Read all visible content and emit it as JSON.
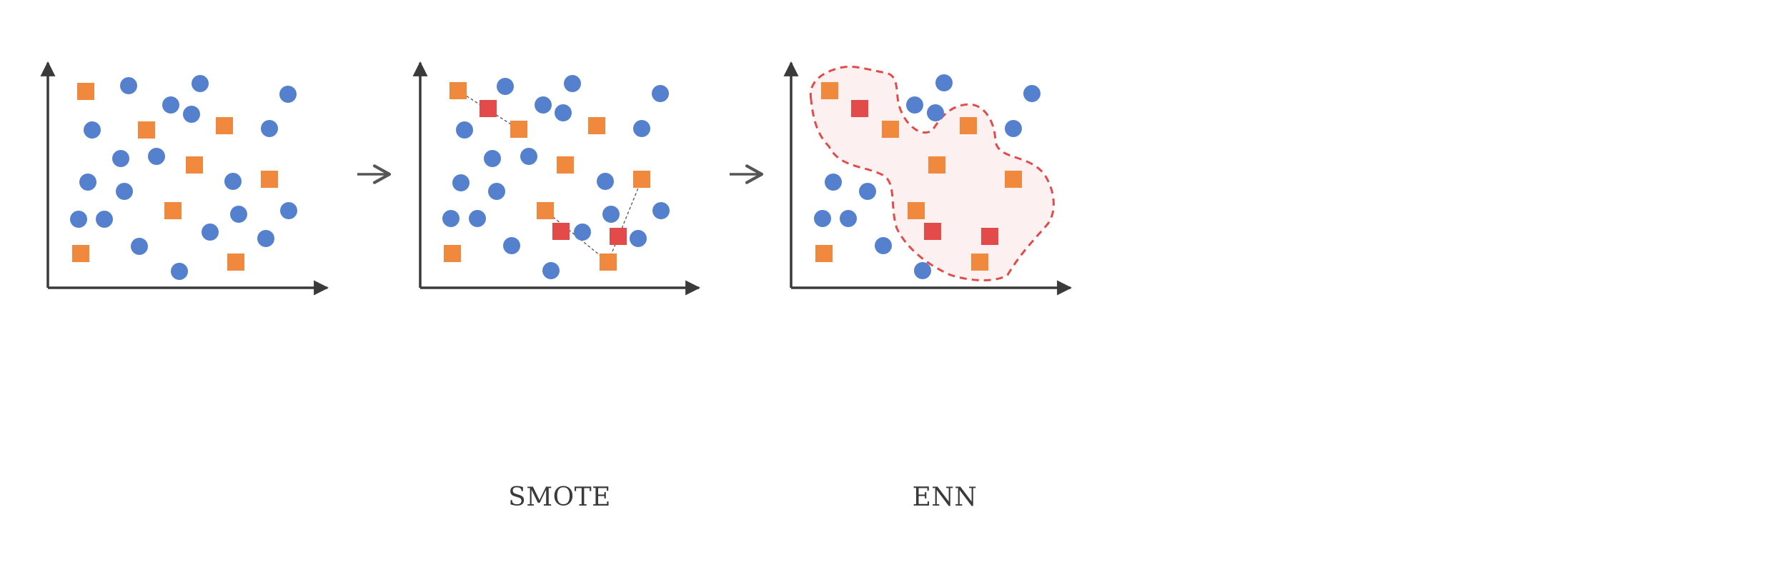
{
  "panels": [
    {
      "label": "",
      "majority": [
        [
          180,
          120
        ],
        [
          280,
          117
        ],
        [
          403,
          132
        ],
        [
          239,
          147
        ],
        [
          268,
          160
        ],
        [
          129,
          182
        ],
        [
          377,
          180
        ],
        [
          169,
          222
        ],
        [
          219,
          219
        ],
        [
          123,
          255
        ],
        [
          174,
          268
        ],
        [
          326,
          254
        ],
        [
          110,
          307
        ],
        [
          146,
          307
        ],
        [
          334,
          300
        ],
        [
          404,
          295
        ],
        [
          294,
          325
        ],
        [
          372,
          334
        ],
        [
          195,
          345
        ],
        [
          251,
          380
        ]
      ],
      "minority": [
        [
          120,
          128
        ],
        [
          205,
          182
        ],
        [
          314,
          176
        ],
        [
          272,
          231
        ],
        [
          377,
          251
        ],
        [
          242,
          295
        ],
        [
          113,
          355
        ],
        [
          330,
          367
        ]
      ],
      "synthetic": []
    },
    {
      "label": "SMOTE",
      "majority": [
        [
          707,
          121
        ],
        [
          801,
          117
        ],
        [
          924,
          131
        ],
        [
          760,
          147
        ],
        [
          788,
          158
        ],
        [
          650,
          182
        ],
        [
          898,
          180
        ],
        [
          689,
          222
        ],
        [
          740,
          219
        ],
        [
          645,
          256
        ],
        [
          695,
          268
        ],
        [
          847,
          254
        ],
        [
          631,
          306
        ],
        [
          668,
          306
        ],
        [
          855,
          300
        ],
        [
          925,
          295
        ],
        [
          815,
          325
        ],
        [
          893,
          334
        ],
        [
          716,
          344
        ],
        [
          771,
          379
        ]
      ],
      "minority": [
        [
          641,
          127
        ],
        [
          726,
          181
        ],
        [
          835,
          176
        ],
        [
          791,
          231
        ],
        [
          898,
          251
        ],
        [
          763,
          295
        ],
        [
          633,
          355
        ],
        [
          851,
          367
        ]
      ],
      "synthetic": [
        [
          683,
          152
        ],
        [
          785,
          324
        ],
        [
          865,
          331
        ]
      ],
      "links": [
        [
          [
            641,
            127
          ],
          [
            726,
            181
          ]
        ],
        [
          [
            763,
            295
          ],
          [
            851,
            367
          ]
        ],
        [
          [
            898,
            251
          ],
          [
            851,
            367
          ]
        ]
      ]
    },
    {
      "label": "ENN",
      "majority": [
        [
          1321,
          116
        ],
        [
          1444,
          131
        ],
        [
          1280,
          147
        ],
        [
          1309,
          158
        ],
        [
          1418,
          180
        ],
        [
          1166,
          255
        ],
        [
          1214,
          268
        ],
        [
          1151,
          306
        ],
        [
          1187,
          306
        ],
        [
          1236,
          344
        ],
        [
          1291,
          379
        ]
      ],
      "minority": [
        [
          1161,
          127
        ],
        [
          1246,
          181
        ],
        [
          1355,
          176
        ],
        [
          1311,
          231
        ],
        [
          1418,
          251
        ],
        [
          1282,
          295
        ],
        [
          1153,
          355
        ],
        [
          1371,
          367
        ]
      ],
      "synthetic": [
        [
          1203,
          152
        ],
        [
          1305,
          324
        ],
        [
          1385,
          331
        ]
      ]
    }
  ],
  "arrows": [
    {
      "from": [
        500,
        244
      ],
      "to": [
        545,
        244
      ]
    },
    {
      "from": [
        1021,
        244
      ],
      "to": [
        1066,
        244
      ]
    }
  ],
  "colors": {
    "majority": "#5480cd",
    "minority": "#f0883d",
    "synthetic": "#e34b4b",
    "axis": "#3a3a3a",
    "region_fill": "#fdf0f0",
    "region_stroke": "#e34b4b"
  }
}
